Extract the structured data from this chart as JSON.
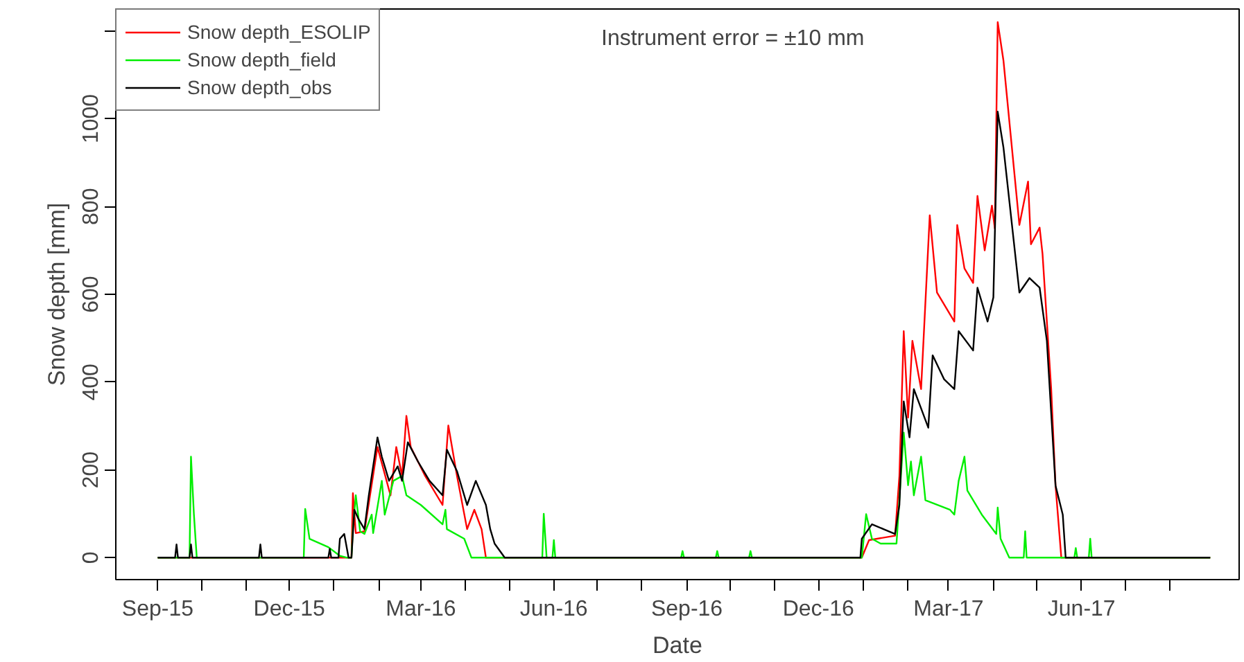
{
  "chart_data": {
    "type": "line",
    "xlabel": "Date",
    "ylabel": "Snow depth [mm]",
    "annotations": [
      "Instrument error = ±10 mm"
    ],
    "xlim": [
      "2015-08-03",
      "2017-09-18"
    ],
    "ylim": [
      -50,
      1250
    ],
    "xticks": [
      {
        "value": "2015-09-01",
        "label": "Sep-15"
      },
      {
        "value": "2015-10-01",
        "label": null
      },
      {
        "value": "2015-11-01",
        "label": null
      },
      {
        "value": "2015-12-01",
        "label": "Dec-15"
      },
      {
        "value": "2016-01-01",
        "label": null
      },
      {
        "value": "2016-02-01",
        "label": null
      },
      {
        "value": "2016-03-01",
        "label": "Mar-16"
      },
      {
        "value": "2016-04-01",
        "label": null
      },
      {
        "value": "2016-05-01",
        "label": null
      },
      {
        "value": "2016-06-01",
        "label": "Jun-16"
      },
      {
        "value": "2016-07-01",
        "label": null
      },
      {
        "value": "2016-08-01",
        "label": null
      },
      {
        "value": "2016-09-01",
        "label": "Sep-16"
      },
      {
        "value": "2016-10-01",
        "label": null
      },
      {
        "value": "2016-11-01",
        "label": null
      },
      {
        "value": "2016-12-01",
        "label": "Dec-16"
      },
      {
        "value": "2017-01-01",
        "label": null
      },
      {
        "value": "2017-02-01",
        "label": null
      },
      {
        "value": "2017-03-01",
        "label": "Mar-17"
      },
      {
        "value": "2017-04-01",
        "label": null
      },
      {
        "value": "2017-05-01",
        "label": null
      },
      {
        "value": "2017-06-01",
        "label": "Jun-17"
      },
      {
        "value": "2017-07-01",
        "label": null
      },
      {
        "value": "2017-08-01",
        "label": null
      }
    ],
    "yticks": [
      0,
      200,
      400,
      600,
      800,
      1000,
      {
        "value": 1200,
        "label": null
      }
    ],
    "grid": false,
    "legend": "top left",
    "line_style": "solid",
    "marker": "none",
    "series": [
      {
        "name": "Snow depth_ESOLIP",
        "color": "#ff0000",
        "x": [
          "2015-09-01",
          "2016-01-13",
          "2016-01-14",
          "2016-01-16",
          "2016-01-22",
          "2016-01-31",
          "2016-02-09",
          "2016-02-13",
          "2016-02-17",
          "2016-02-20",
          "2016-02-23",
          "2016-03-04",
          "2016-03-16",
          "2016-03-20",
          "2016-03-26",
          "2016-04-02",
          "2016-04-07",
          "2016-04-12",
          "2016-04-15",
          "2016-12-31",
          "2017-01-05",
          "2017-01-23",
          "2017-01-26",
          "2017-01-29",
          "2017-02-01",
          "2017-02-04",
          "2017-02-10",
          "2017-02-16",
          "2017-02-21",
          "2017-03-05",
          "2017-03-07",
          "2017-03-12",
          "2017-03-18",
          "2017-03-21",
          "2017-03-26",
          "2017-03-31",
          "2017-04-02",
          "2017-04-04",
          "2017-04-08",
          "2017-04-19",
          "2017-04-25",
          "2017-04-27",
          "2017-05-03",
          "2017-05-05",
          "2017-05-11",
          "2017-05-14",
          "2017-05-18",
          "2017-08-29"
        ],
        "values": [
          0,
          0,
          147,
          56,
          60,
          252,
          142,
          252,
          186,
          323,
          252,
          186,
          120,
          301,
          186,
          65,
          109,
          65,
          0,
          0,
          40,
          50,
          186,
          516,
          319,
          494,
          384,
          780,
          604,
          538,
          758,
          659,
          626,
          824,
          700,
          802,
          750,
          1220,
          1132,
          758,
          857,
          714,
          752,
          692,
          384,
          164,
          0,
          0
        ]
      },
      {
        "name": "Snow depth_field",
        "color": "#00ee00",
        "x": [
          "2015-09-01",
          "2015-09-23",
          "2015-09-24",
          "2015-09-26",
          "2015-09-28",
          "2015-12-11",
          "2015-12-12",
          "2015-12-15",
          "2015-12-28",
          "2016-01-05",
          "2016-01-10",
          "2016-01-13",
          "2016-01-14",
          "2016-01-16",
          "2016-01-19",
          "2016-01-22",
          "2016-01-27",
          "2016-01-28",
          "2016-02-03",
          "2016-02-05",
          "2016-02-11",
          "2016-02-17",
          "2016-02-20",
          "2016-03-01",
          "2016-03-16",
          "2016-03-18",
          "2016-03-19",
          "2016-03-31",
          "2016-04-05",
          "2016-05-24",
          "2016-05-25",
          "2016-05-27",
          "2016-05-31",
          "2016-06-01",
          "2016-06-02",
          "2016-08-28",
          "2016-08-29",
          "2016-08-30",
          "2016-09-21",
          "2016-09-22",
          "2016-09-23",
          "2016-10-14",
          "2016-10-15",
          "2016-10-16",
          "2016-12-31",
          "2017-01-03",
          "2017-01-07",
          "2017-01-13",
          "2017-01-24",
          "2017-01-29",
          "2017-02-01",
          "2017-02-03",
          "2017-02-05",
          "2017-02-10",
          "2017-02-13",
          "2017-03-02",
          "2017-03-05",
          "2017-03-08",
          "2017-03-12",
          "2017-03-14",
          "2017-03-24",
          "2017-04-03",
          "2017-04-04",
          "2017-04-06",
          "2017-04-12",
          "2017-04-22",
          "2017-04-23",
          "2017-04-24",
          "2017-05-27",
          "2017-05-28",
          "2017-05-29",
          "2017-06-06",
          "2017-06-07",
          "2017-06-08",
          "2017-08-29"
        ],
        "values": [
          0,
          0,
          230,
          100,
          0,
          0,
          111,
          43,
          24,
          4,
          0,
          0,
          66,
          142,
          60,
          54,
          98,
          56,
          175,
          98,
          175,
          186,
          142,
          120,
          76,
          109,
          65,
          43,
          0,
          0,
          100,
          0,
          0,
          40,
          0,
          0,
          15,
          0,
          0,
          15,
          0,
          0,
          15,
          0,
          0,
          99,
          43,
          32,
          32,
          285,
          165,
          219,
          142,
          230,
          131,
          109,
          98,
          175,
          230,
          153,
          98,
          54,
          114,
          43,
          0,
          0,
          60,
          0,
          0,
          22,
          0,
          0,
          43,
          0,
          0
        ]
      },
      {
        "name": "Snow depth_obs",
        "color": "#000000",
        "x": [
          "2015-09-01",
          "2015-09-13",
          "2015-09-14",
          "2015-09-15",
          "2015-09-23",
          "2015-09-24",
          "2015-09-25",
          "2015-11-10",
          "2015-11-11",
          "2015-11-12",
          "2015-12-28",
          "2015-12-29",
          "2015-12-30",
          "2016-01-04",
          "2016-01-05",
          "2016-01-08",
          "2016-01-11",
          "2016-01-13",
          "2016-01-15",
          "2016-01-18",
          "2016-01-22",
          "2016-01-25",
          "2016-01-31",
          "2016-02-03",
          "2016-02-08",
          "2016-02-14",
          "2016-02-17",
          "2016-02-21",
          "2016-02-28",
          "2016-03-07",
          "2016-03-16",
          "2016-03-19",
          "2016-03-26",
          "2016-04-02",
          "2016-04-08",
          "2016-04-15",
          "2016-04-18",
          "2016-04-21",
          "2016-04-28",
          "2016-12-30",
          "2016-12-31",
          "2017-01-07",
          "2017-01-23",
          "2017-01-26",
          "2017-01-29",
          "2017-02-02",
          "2017-02-05",
          "2017-02-15",
          "2017-02-18",
          "2017-02-26",
          "2017-03-05",
          "2017-03-08",
          "2017-03-18",
          "2017-03-21",
          "2017-03-28",
          "2017-04-01",
          "2017-04-04",
          "2017-04-08",
          "2017-04-19",
          "2017-04-26",
          "2017-05-03",
          "2017-05-08",
          "2017-05-14",
          "2017-05-19",
          "2017-05-21",
          "2017-08-29"
        ],
        "values": [
          0,
          0,
          30,
          0,
          0,
          30,
          0,
          0,
          30,
          0,
          0,
          20,
          0,
          0,
          43,
          54,
          0,
          0,
          109,
          87,
          65,
          142,
          274,
          230,
          175,
          208,
          175,
          263,
          219,
          175,
          142,
          246,
          197,
          120,
          175,
          120,
          65,
          32,
          0,
          0,
          43,
          76,
          54,
          120,
          356,
          274,
          384,
          296,
          461,
          406,
          384,
          516,
          472,
          615,
          538,
          593,
          1016,
          934,
          604,
          637,
          615,
          494,
          164,
          98,
          0,
          0
        ]
      }
    ]
  }
}
